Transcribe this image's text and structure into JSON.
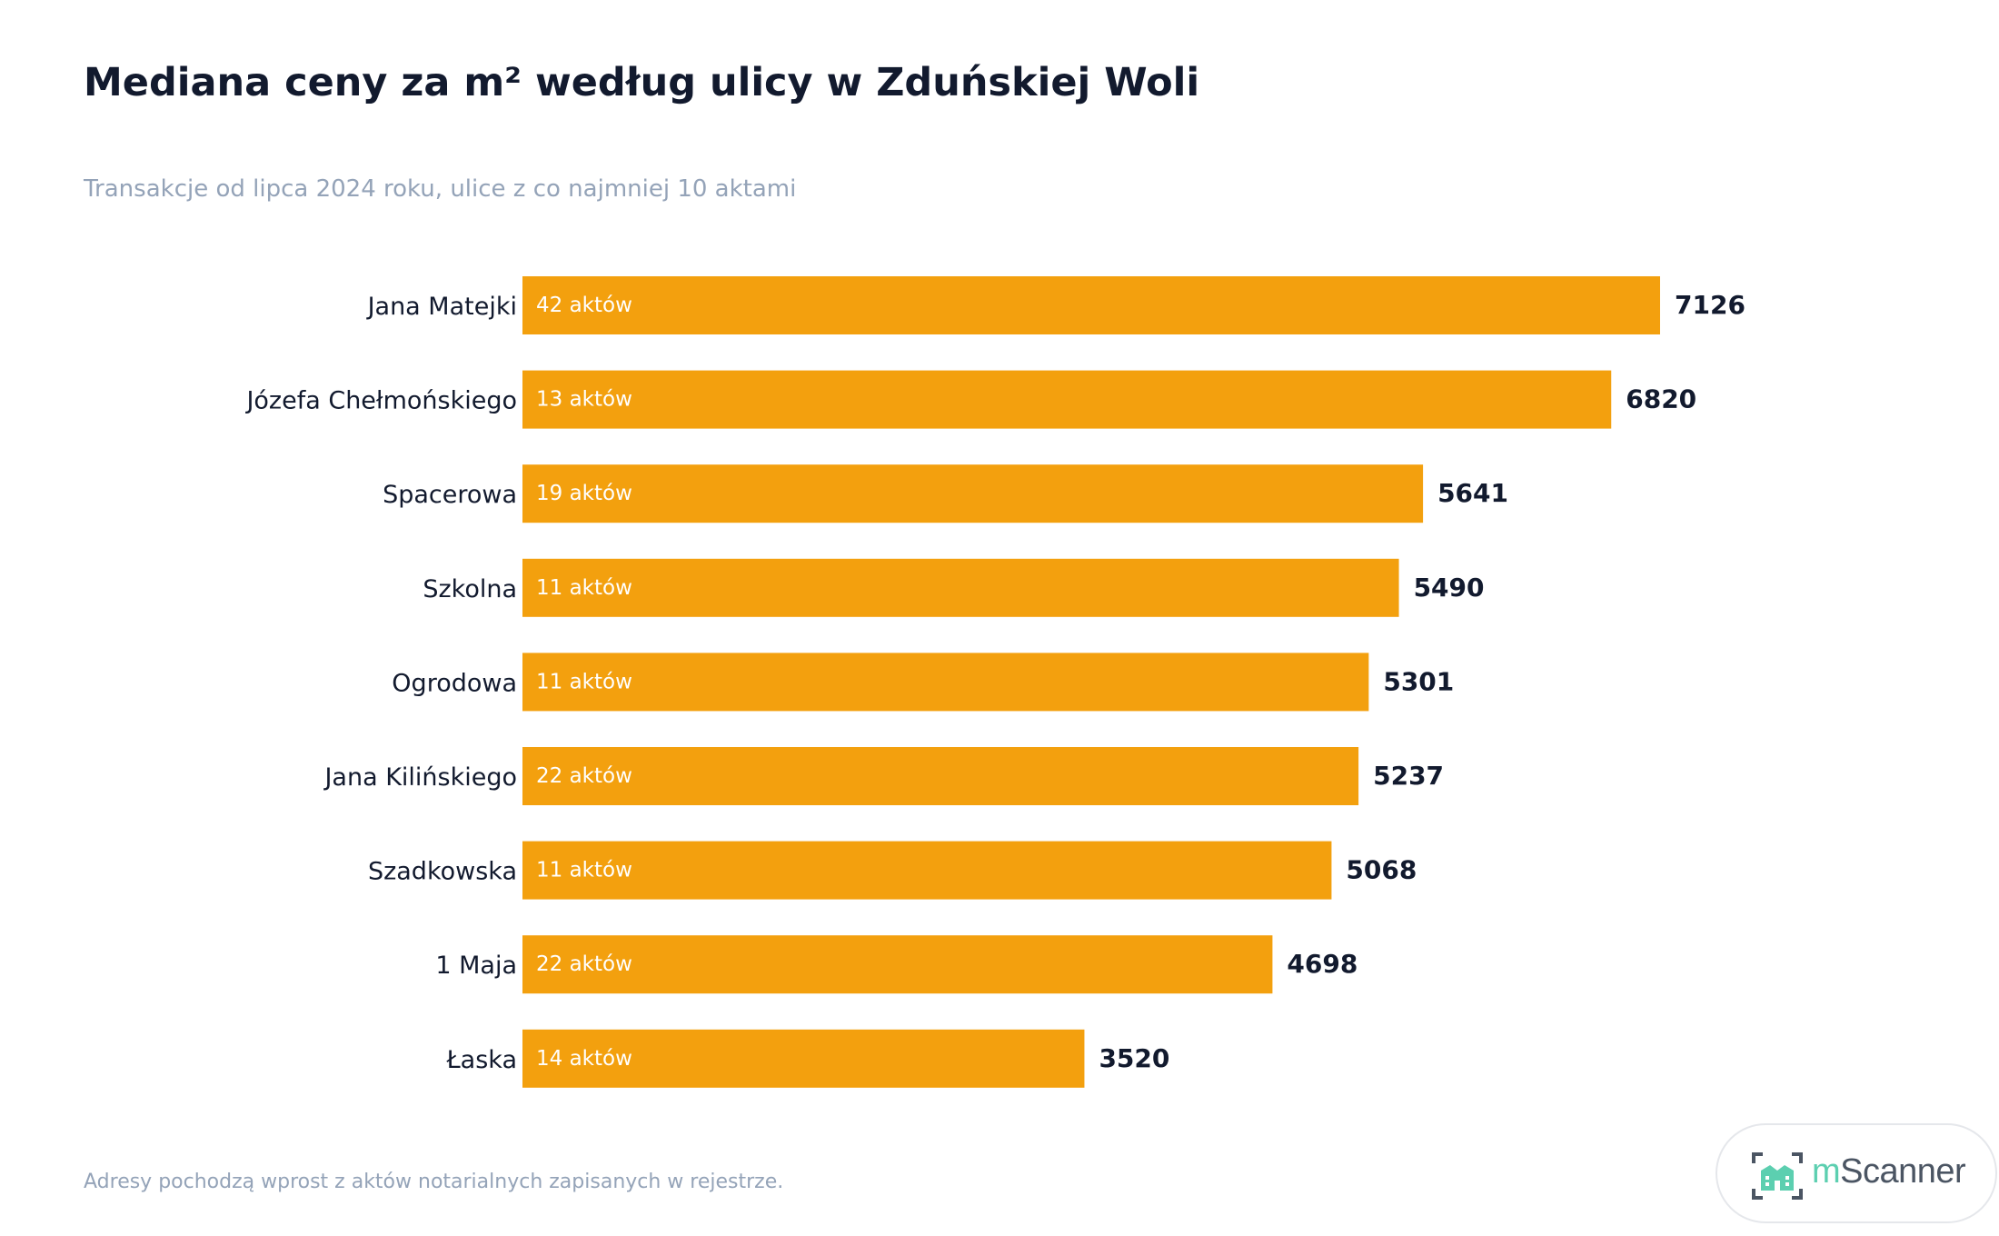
{
  "header": {
    "title": "Mediana ceny za m² według ulicy w Zduńskiej Woli",
    "subtitle": "Transakcje od lipca 2024 roku, ulice z co najmniej 10 aktami"
  },
  "footer": {
    "note": "Adresy pochodzą wprost z aktów notarialnych zapisanych w rejestrze.",
    "logo_text": "mScanner",
    "logo_prefix": "m",
    "logo_suffix": "Scanner"
  },
  "colors": {
    "bar": "#f3a00e",
    "title": "#121a2e",
    "muted": "#94a3b8",
    "logo_accent": "#5ccfb0"
  },
  "chart_data": {
    "type": "bar",
    "orientation": "horizontal",
    "title": "Mediana ceny za m² według ulicy w Zduńskiej Woli",
    "subtitle": "Transakcje od lipca 2024 roku, ulice z co najmniej 10 aktami",
    "categories": [
      "Jana Matejki",
      "Józefa Chełmońskiego",
      "Spacerowa",
      "Szkolna",
      "Ogrodowa",
      "Jana Kilińskiego",
      "Szadkowska",
      "1 Maja",
      "Łaska"
    ],
    "values": [
      7126,
      6820,
      5641,
      5490,
      5301,
      5237,
      5068,
      4698,
      3520
    ],
    "bar_labels": [
      "42 aktów",
      "13 aktów",
      "19 aktów",
      "11 aktów",
      "11 aktów",
      "22 aktów",
      "11 aktów",
      "22 aktów",
      "14 aktów"
    ],
    "xlim": [
      0,
      7126
    ],
    "grid": false,
    "legend": "none"
  }
}
